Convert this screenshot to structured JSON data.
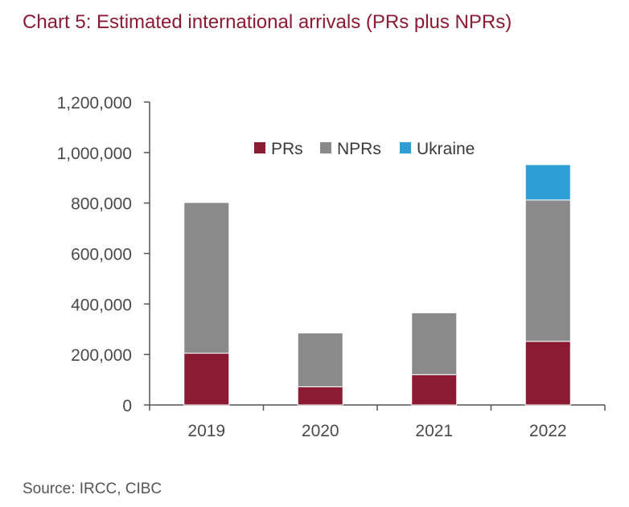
{
  "title": "Chart 5: Estimated international arrivals (PRs plus NPRs)",
  "source": "Source: IRCC, CIBC",
  "chart_data": {
    "type": "bar",
    "stacked": true,
    "categories": [
      "2019",
      "2020",
      "2021",
      "2022"
    ],
    "series": [
      {
        "name": "PRs",
        "color": "#8b1a33",
        "values": [
          205000,
          72000,
          120000,
          252000
        ]
      },
      {
        "name": "NPRs",
        "color": "#8a8a8a",
        "values": [
          597000,
          213000,
          245000,
          560000
        ]
      },
      {
        "name": "Ukraine",
        "color": "#2e9fd6",
        "values": [
          0,
          0,
          0,
          140000
        ]
      }
    ],
    "ylim": [
      0,
      1200000
    ],
    "yticks": [
      0,
      200000,
      400000,
      600000,
      800000,
      1000000,
      1200000
    ],
    "ytick_labels": [
      "0",
      "200,000",
      "400,000",
      "600,000",
      "800,000",
      "1,000,000",
      "1,200,000"
    ],
    "xlabel": "",
    "ylabel": "",
    "grid": false,
    "legend_position": "top"
  }
}
